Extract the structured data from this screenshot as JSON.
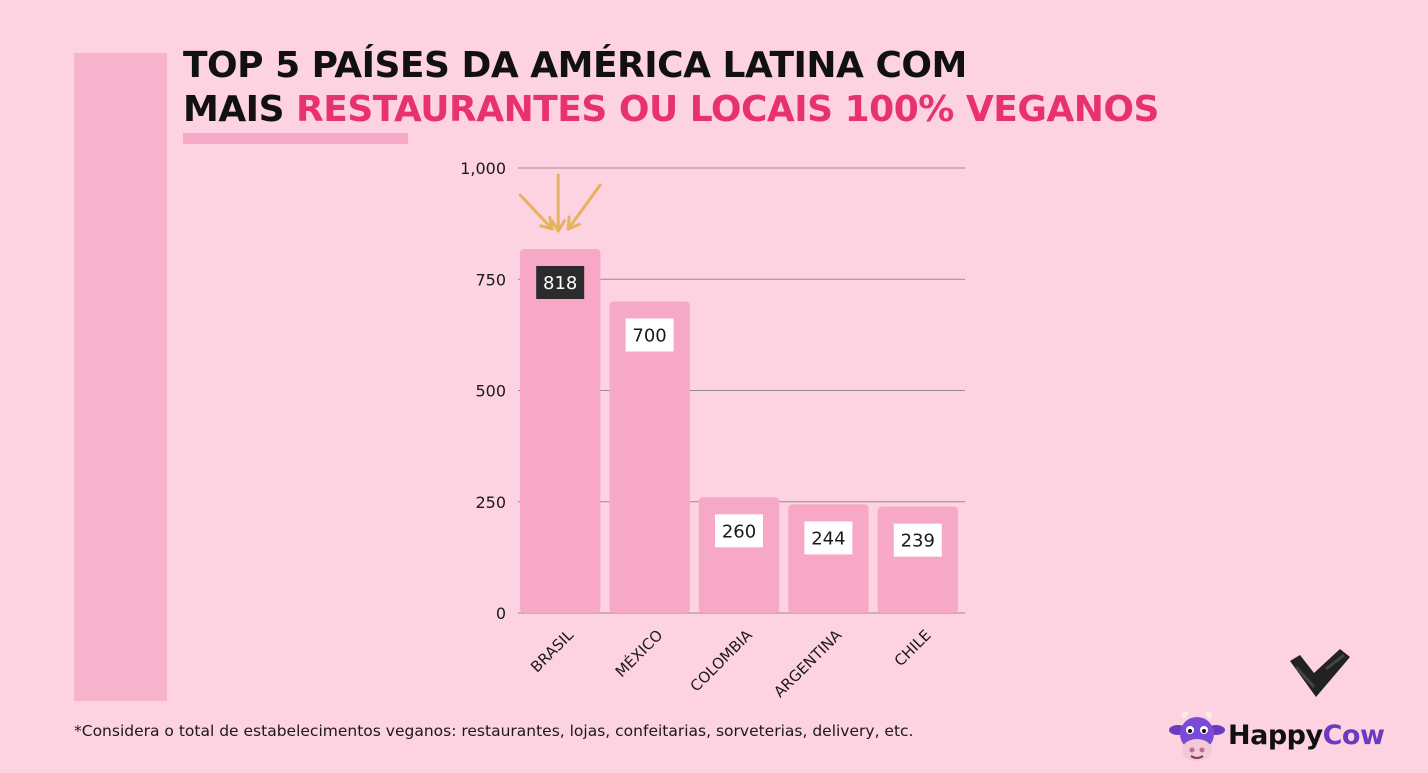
{
  "title": {
    "line1": "TOP 5 PAÍSES DA AMÉRICA LATINA COM",
    "line2_plain": "MAIS ",
    "line2_highlight": "RESTAURANTES OU LOCAIS 100% VEGANOS"
  },
  "colors": {
    "background": "#fdd3e1",
    "bar": "#f7a8c6",
    "highlight_text": "#e8316f",
    "gridline": "#9a8a90",
    "arrow": "#e6b25a",
    "highlight_label_bg": "#2b2b2b"
  },
  "chart_data": {
    "type": "bar",
    "categories": [
      "BRASIL",
      "MÉXICO",
      "COLOMBIA",
      "ARGENTINA",
      "CHILE"
    ],
    "values": [
      818,
      700,
      260,
      244,
      239
    ],
    "ylim": [
      0,
      1000
    ],
    "yticks": [
      0,
      250,
      500,
      750,
      1000
    ],
    "ytick_labels": [
      "0",
      "250",
      "500",
      "750",
      "1,000"
    ],
    "highlight_index": 0,
    "grid": true,
    "xlabel": "",
    "ylabel": ""
  },
  "footnote": "*Considera o total de estabelecimentos veganos: restaurantes, lojas, confeitarias, sorveterias, delivery, etc.",
  "logo": {
    "word1": "Happy",
    "word2": "Cow"
  }
}
